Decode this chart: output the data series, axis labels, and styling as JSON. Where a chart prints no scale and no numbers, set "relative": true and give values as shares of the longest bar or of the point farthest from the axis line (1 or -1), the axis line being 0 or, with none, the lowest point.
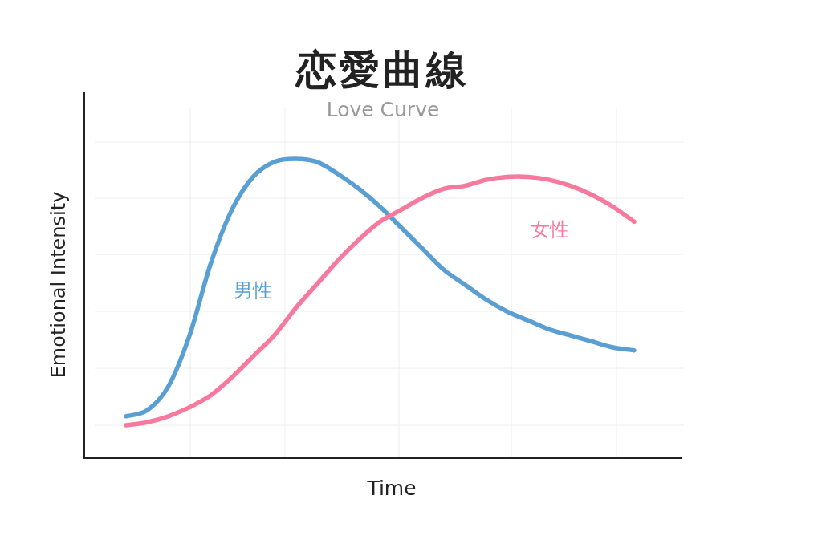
{
  "chart_data": {
    "type": "line",
    "title": "恋愛曲線",
    "subtitle": "Love Curve",
    "xlabel": "Time",
    "ylabel": "Emotional Intensity",
    "relative": true,
    "grid": true,
    "categories": [
      null,
      null,
      null,
      null,
      null,
      null,
      null,
      null,
      null,
      null,
      null,
      null,
      null,
      null,
      null,
      null,
      null,
      null,
      null,
      null,
      null,
      null,
      null,
      null,
      null
    ],
    "series": [
      {
        "name": "男性",
        "color": "#5a9fd3",
        "values": [
          0.14,
          0.16,
          0.24,
          0.41,
          0.65,
          0.83,
          0.94,
          0.99,
          1.0,
          0.99,
          0.95,
          0.9,
          0.84,
          0.77,
          0.7,
          0.63,
          0.58,
          0.53,
          0.49,
          0.46,
          0.43,
          0.41,
          0.39,
          0.37,
          0.36
        ]
      },
      {
        "name": "女性",
        "color": "#f77a9e",
        "values": [
          0.11,
          0.12,
          0.14,
          0.17,
          0.21,
          0.27,
          0.34,
          0.41,
          0.5,
          0.58,
          0.66,
          0.73,
          0.79,
          0.83,
          0.87,
          0.9,
          0.91,
          0.93,
          0.94,
          0.94,
          0.93,
          0.91,
          0.88,
          0.84,
          0.79
        ]
      }
    ]
  }
}
